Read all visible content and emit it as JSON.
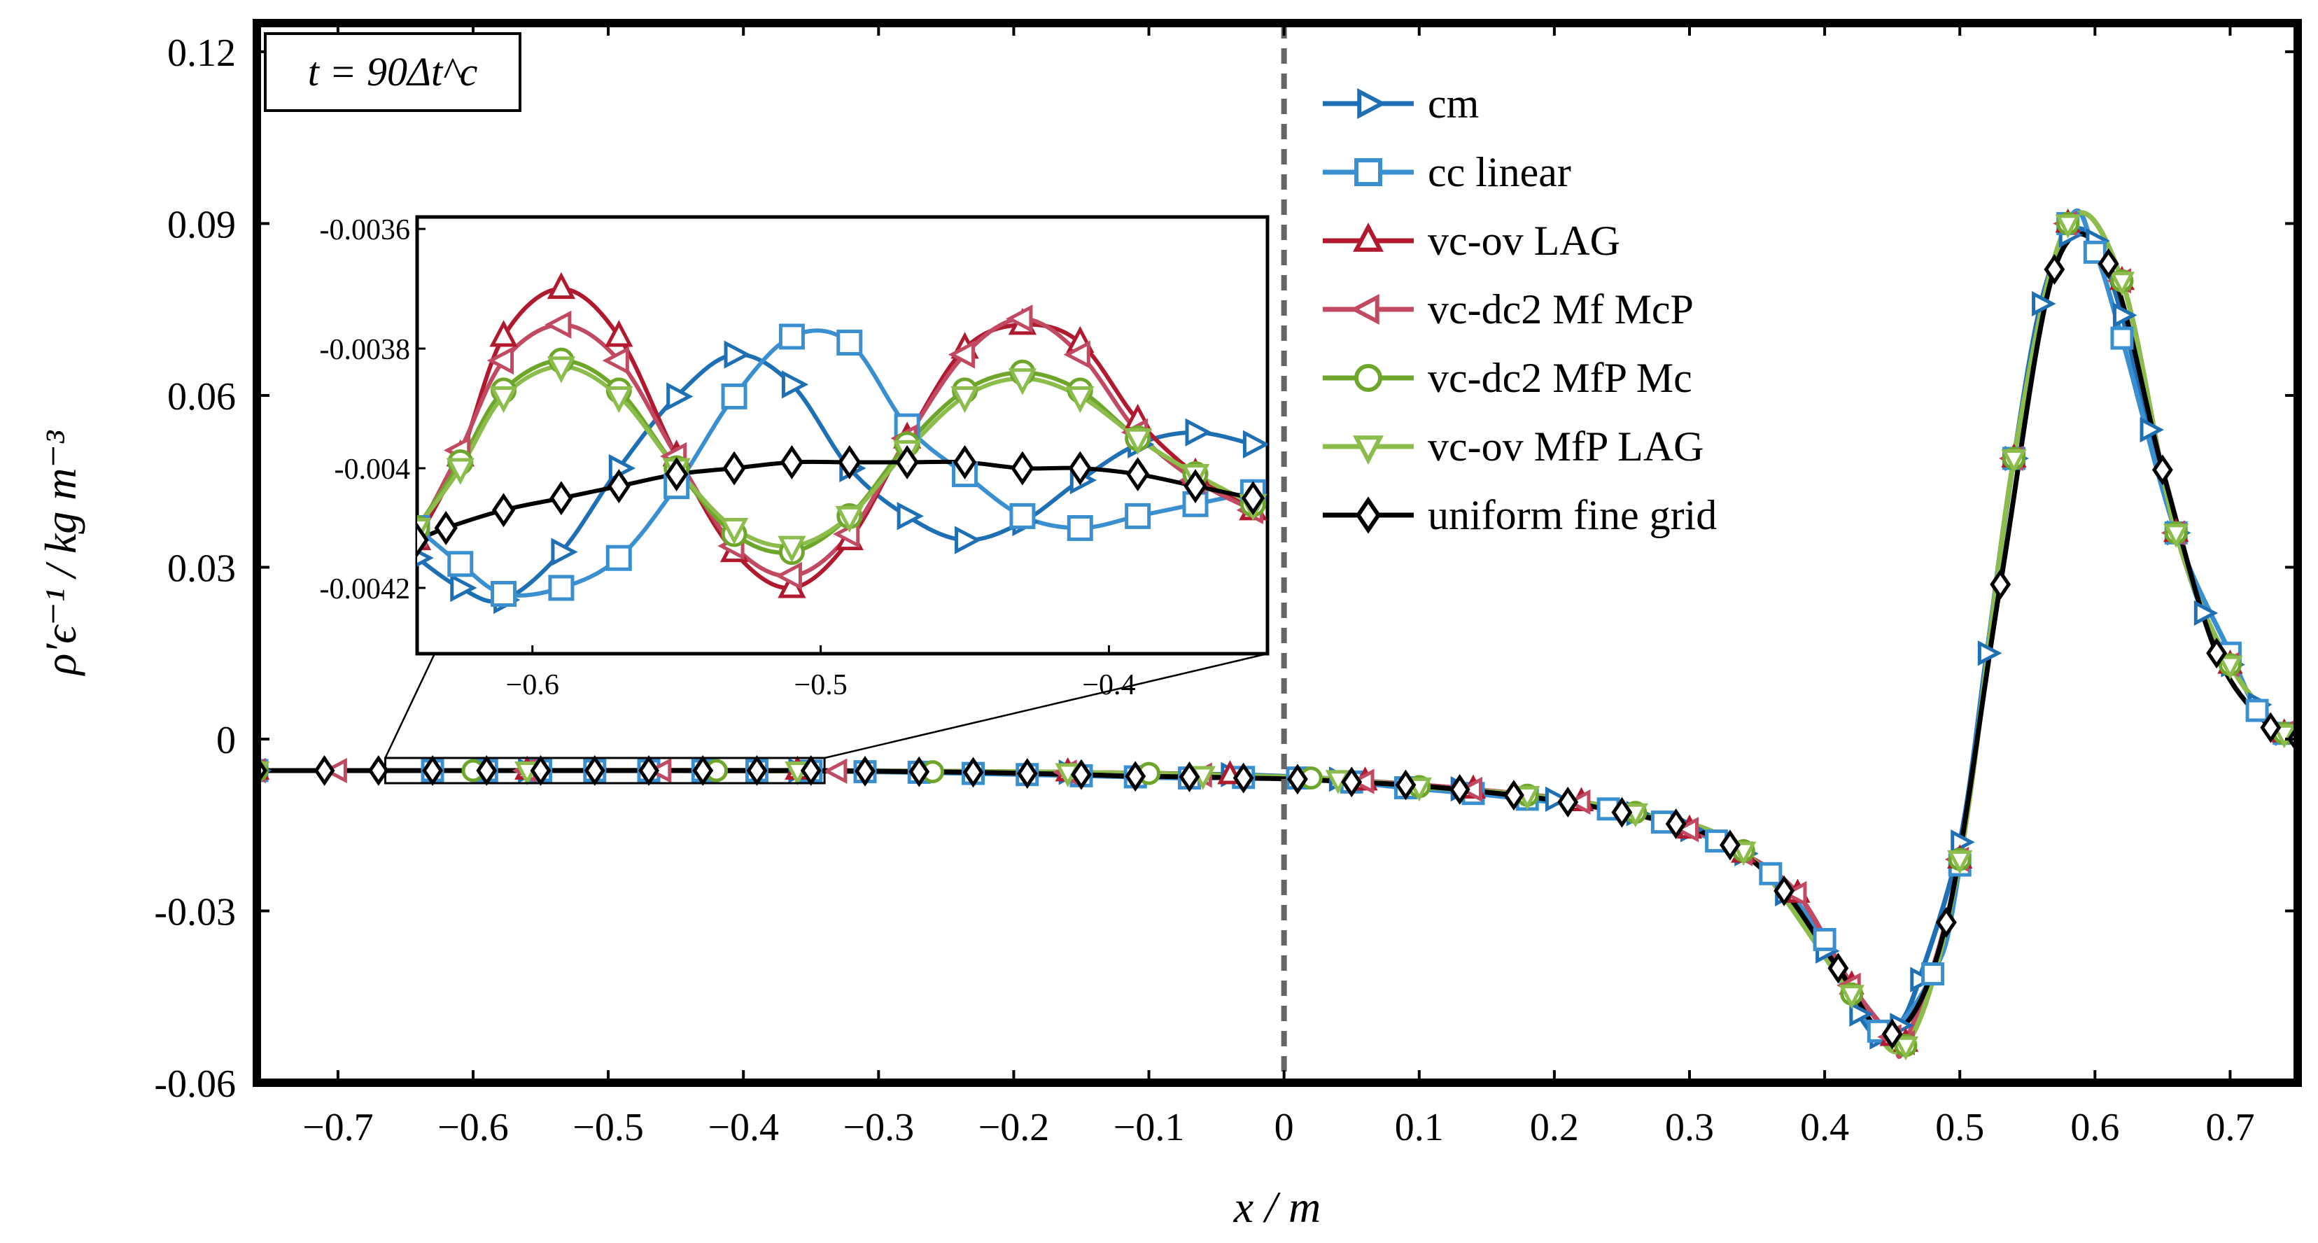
{
  "chart_data": {
    "type": "line",
    "annotation": "t = 90Δt^c",
    "xlabel": "x / m",
    "ylabel": "ρ′ϵ⁻¹ / kg m⁻³",
    "xlim": [
      -0.76,
      0.75
    ],
    "ylim": [
      -0.06,
      0.125
    ],
    "x_ticks": [
      -0.7,
      -0.6,
      -0.5,
      -0.4,
      -0.3,
      -0.2,
      -0.1,
      0,
      0.1,
      0.2,
      0.3,
      0.4,
      0.5,
      0.6,
      0.7
    ],
    "x_tick_labels": [
      "−0.7",
      "−0.6",
      "−0.5",
      "−0.4",
      "−0.3",
      "−0.2",
      "−0.1",
      "0",
      "0.1",
      "0.2",
      "0.3",
      "0.4",
      "0.5",
      "0.6",
      "0.7"
    ],
    "y_ticks": [
      -0.06,
      -0.03,
      0,
      0.03,
      0.06,
      0.09,
      0.12
    ],
    "y_tick_labels": [
      "-0.06",
      "-0.03",
      "0",
      "0.03",
      "0.06",
      "0.09",
      "0.12"
    ],
    "vertical_line_x": 0,
    "legend_position": "top-right",
    "series": [
      {
        "name": "cm",
        "color": "#1f6fb5",
        "marker": "triangle-right",
        "x": [
          -0.76,
          -0.56,
          -0.36,
          -0.16,
          -0.04,
          0.04,
          0.13,
          0.2,
          0.26,
          0.3,
          0.34,
          0.37,
          0.4,
          0.425,
          0.44,
          0.455,
          0.47,
          0.5,
          0.52,
          0.54,
          0.56,
          0.58,
          0.6,
          0.62,
          0.64,
          0.66,
          0.68,
          0.7,
          0.72,
          0.74
        ],
        "y": [
          -0.0055,
          -0.0055,
          -0.0055,
          -0.0058,
          -0.0062,
          -0.007,
          -0.0087,
          -0.0105,
          -0.013,
          -0.0158,
          -0.02,
          -0.027,
          -0.037,
          -0.048,
          -0.052,
          -0.05,
          -0.042,
          -0.018,
          0.015,
          0.049,
          0.076,
          0.088,
          0.087,
          0.074,
          0.054,
          0.036,
          0.022,
          0.013,
          0.006,
          0.001
        ]
      },
      {
        "name": "cc linear",
        "color": "#3a8fd0",
        "marker": "square",
        "x": [
          -0.76,
          -0.63,
          -0.59,
          -0.55,
          -0.51,
          -0.47,
          -0.43,
          -0.39,
          -0.35,
          -0.31,
          -0.27,
          -0.23,
          -0.19,
          -0.15,
          -0.11,
          -0.07,
          -0.03,
          0.01,
          0.05,
          0.09,
          0.14,
          0.18,
          0.24,
          0.28,
          0.32,
          0.36,
          0.4,
          0.44,
          0.48,
          0.5,
          0.54,
          0.58,
          0.6,
          0.62,
          0.66,
          0.7,
          0.72,
          0.74
        ],
        "y": [
          -0.0055,
          -0.0055,
          -0.0055,
          -0.0055,
          -0.0055,
          -0.0055,
          -0.0055,
          -0.0055,
          -0.0056,
          -0.0057,
          -0.0058,
          -0.006,
          -0.0062,
          -0.0064,
          -0.0066,
          -0.0068,
          -0.0067,
          -0.0068,
          -0.0075,
          -0.0085,
          -0.0095,
          -0.0105,
          -0.0122,
          -0.0145,
          -0.0178,
          -0.0235,
          -0.035,
          -0.051,
          -0.041,
          -0.022,
          0.049,
          0.09,
          0.085,
          0.07,
          0.036,
          0.015,
          0.005,
          0.001
        ]
      },
      {
        "name": "vc-ov LAG",
        "color": "#b0192e",
        "marker": "triangle-up",
        "x": [
          -0.76,
          -0.56,
          -0.36,
          -0.16,
          -0.04,
          0.06,
          0.14,
          0.22,
          0.3,
          0.34,
          0.38,
          0.42,
          0.45,
          0.46,
          0.5,
          0.54,
          0.58,
          0.62,
          0.66,
          0.7,
          0.74
        ],
        "y": [
          -0.0055,
          -0.0055,
          -0.0055,
          -0.0058,
          -0.0063,
          -0.0074,
          -0.0088,
          -0.011,
          -0.0158,
          -0.02,
          -0.027,
          -0.043,
          -0.052,
          -0.053,
          -0.021,
          0.049,
          0.09,
          0.08,
          0.036,
          0.013,
          0.001
        ]
      },
      {
        "name": "vc-dc2 Mf McP",
        "color": "#c14a62",
        "marker": "triangle-left",
        "x": [
          -0.76,
          -0.7,
          -0.56,
          -0.46,
          -0.33,
          -0.16,
          -0.06,
          0.06,
          0.14,
          0.22,
          0.3,
          0.34,
          0.38,
          0.42,
          0.45,
          0.46,
          0.5,
          0.54,
          0.58,
          0.62,
          0.66,
          0.7,
          0.74
        ],
        "y": [
          -0.0055,
          -0.0055,
          -0.0055,
          -0.0055,
          -0.0056,
          -0.0058,
          -0.0063,
          -0.0074,
          -0.0088,
          -0.011,
          -0.0158,
          -0.02,
          -0.027,
          -0.043,
          -0.052,
          -0.053,
          -0.021,
          0.049,
          0.09,
          0.08,
          0.036,
          0.013,
          0.001
        ]
      },
      {
        "name": "vc-dc2 MfP Mc",
        "color": "#6ea62b",
        "marker": "circle",
        "x": [
          -0.76,
          -0.6,
          -0.42,
          -0.26,
          -0.1,
          0.02,
          0.1,
          0.18,
          0.26,
          0.34,
          0.42,
          0.46,
          0.5,
          0.54,
          0.58,
          0.62,
          0.66,
          0.7,
          0.74
        ],
        "y": [
          -0.0055,
          -0.0055,
          -0.0055,
          -0.0057,
          -0.006,
          -0.0068,
          -0.0083,
          -0.0098,
          -0.0128,
          -0.0195,
          -0.0445,
          -0.0535,
          -0.021,
          0.049,
          0.09,
          0.08,
          0.036,
          0.013,
          0.001
        ]
      },
      {
        "name": "vc-ov MfP LAG",
        "color": "#8cbc4c",
        "marker": "triangle-down",
        "x": [
          -0.76,
          -0.56,
          -0.36,
          -0.16,
          -0.06,
          0.04,
          0.1,
          0.18,
          0.26,
          0.34,
          0.42,
          0.46,
          0.5,
          0.54,
          0.58,
          0.62,
          0.66,
          0.7,
          0.74
        ],
        "y": [
          -0.0055,
          -0.0055,
          -0.0055,
          -0.0058,
          -0.0063,
          -0.007,
          -0.0083,
          -0.0098,
          -0.0128,
          -0.0195,
          -0.0445,
          -0.0535,
          -0.021,
          0.049,
          0.09,
          0.08,
          0.036,
          0.013,
          0.001
        ]
      },
      {
        "name": "uniform fine grid",
        "color": "#000000",
        "marker": "diamond",
        "x": [
          -0.76,
          -0.71,
          -0.67,
          -0.63,
          -0.59,
          -0.55,
          -0.51,
          -0.47,
          -0.43,
          -0.39,
          -0.35,
          -0.31,
          -0.27,
          -0.23,
          -0.19,
          -0.15,
          -0.11,
          -0.07,
          -0.03,
          0.01,
          0.05,
          0.09,
          0.13,
          0.17,
          0.21,
          0.25,
          0.29,
          0.33,
          0.37,
          0.41,
          0.45,
          0.49,
          0.53,
          0.57,
          0.61,
          0.65,
          0.69,
          0.73,
          0.75
        ],
        "y": [
          -0.0055,
          -0.0055,
          -0.0055,
          -0.0055,
          -0.0055,
          -0.0055,
          -0.0055,
          -0.0055,
          -0.0055,
          -0.0055,
          -0.0055,
          -0.0056,
          -0.0057,
          -0.0058,
          -0.006,
          -0.0062,
          -0.0065,
          -0.0066,
          -0.0068,
          -0.007,
          -0.0075,
          -0.008,
          -0.0088,
          -0.0098,
          -0.011,
          -0.0128,
          -0.0148,
          -0.0185,
          -0.0265,
          -0.04,
          -0.0515,
          -0.032,
          0.027,
          0.082,
          0.083,
          0.047,
          0.015,
          0.002,
          0.0
        ]
      }
    ],
    "inset": {
      "xlim": [
        -0.64,
        -0.345
      ],
      "ylim": [
        -0.00431,
        -0.00358
      ],
      "zoom_region": {
        "xlim": [
          -0.665,
          -0.34
        ],
        "ylim": [
          -0.0077,
          -0.0033
        ]
      },
      "x_ticks": [
        -0.6,
        -0.5,
        -0.4
      ],
      "x_tick_labels": [
        "−0.6",
        "−0.5",
        "−0.4"
      ],
      "y_ticks": [
        -0.0036,
        -0.0038,
        -0.004,
        -0.0042
      ],
      "y_tick_labels": [
        "-0.0036",
        "-0.0038",
        "-0.004",
        "-0.0042"
      ],
      "series": [
        {
          "name": "cm",
          "x": [
            -0.64,
            -0.625,
            -0.61,
            -0.59,
            -0.57,
            -0.55,
            -0.53,
            -0.51,
            -0.49,
            -0.47,
            -0.45,
            -0.43,
            -0.41,
            -0.39,
            -0.37,
            -0.35
          ],
          "y": [
            -0.00415,
            -0.0042,
            -0.00422,
            -0.00414,
            -0.004,
            -0.00388,
            -0.00381,
            -0.00386,
            -0.004,
            -0.00408,
            -0.00412,
            -0.00409,
            -0.00402,
            -0.00396,
            -0.00394,
            -0.00396
          ]
        },
        {
          "name": "cc linear",
          "x": [
            -0.64,
            -0.625,
            -0.61,
            -0.59,
            -0.57,
            -0.55,
            -0.53,
            -0.51,
            -0.49,
            -0.47,
            -0.45,
            -0.43,
            -0.41,
            -0.39,
            -0.37,
            -0.35
          ],
          "y": [
            -0.0041,
            -0.00416,
            -0.00421,
            -0.0042,
            -0.00415,
            -0.00403,
            -0.00388,
            -0.00378,
            -0.00379,
            -0.00393,
            -0.00401,
            -0.00408,
            -0.0041,
            -0.00408,
            -0.00406,
            -0.00404
          ]
        },
        {
          "name": "vc-ov LAG",
          "x": [
            -0.64,
            -0.625,
            -0.61,
            -0.59,
            -0.57,
            -0.55,
            -0.53,
            -0.51,
            -0.49,
            -0.47,
            -0.45,
            -0.43,
            -0.41,
            -0.39,
            -0.37,
            -0.35
          ],
          "y": [
            -0.00412,
            -0.00398,
            -0.00378,
            -0.0037,
            -0.00378,
            -0.00398,
            -0.00414,
            -0.0042,
            -0.00412,
            -0.00395,
            -0.0038,
            -0.00376,
            -0.00379,
            -0.00392,
            -0.00401,
            -0.00407
          ]
        },
        {
          "name": "vc-dc2 Mf McP",
          "x": [
            -0.64,
            -0.625,
            -0.61,
            -0.59,
            -0.57,
            -0.55,
            -0.53,
            -0.51,
            -0.49,
            -0.47,
            -0.45,
            -0.43,
            -0.41,
            -0.39,
            -0.37,
            -0.35
          ],
          "y": [
            -0.00411,
            -0.00397,
            -0.00382,
            -0.00376,
            -0.00382,
            -0.00398,
            -0.00413,
            -0.00418,
            -0.00411,
            -0.00395,
            -0.00381,
            -0.00375,
            -0.00381,
            -0.00394,
            -0.00402,
            -0.00407
          ]
        },
        {
          "name": "vc-dc2 MfP Mc",
          "x": [
            -0.64,
            -0.625,
            -0.61,
            -0.59,
            -0.57,
            -0.55,
            -0.53,
            -0.51,
            -0.49,
            -0.47,
            -0.45,
            -0.43,
            -0.41,
            -0.39,
            -0.37,
            -0.35
          ],
          "y": [
            -0.0041,
            -0.00399,
            -0.00387,
            -0.00382,
            -0.00387,
            -0.004,
            -0.00411,
            -0.00414,
            -0.00408,
            -0.00396,
            -0.00387,
            -0.00384,
            -0.00387,
            -0.00395,
            -0.00401,
            -0.00406
          ]
        },
        {
          "name": "vc-ov MfP LAG",
          "x": [
            -0.64,
            -0.625,
            -0.61,
            -0.59,
            -0.57,
            -0.55,
            -0.53,
            -0.51,
            -0.49,
            -0.47,
            -0.45,
            -0.43,
            -0.41,
            -0.39,
            -0.37,
            -0.35
          ],
          "y": [
            -0.0041,
            -0.004,
            -0.00388,
            -0.00383,
            -0.00388,
            -0.004,
            -0.0041,
            -0.00413,
            -0.00408,
            -0.00397,
            -0.00388,
            -0.00385,
            -0.00388,
            -0.00395,
            -0.00401,
            -0.00406
          ]
        },
        {
          "name": "uniform fine grid",
          "x": [
            -0.64,
            -0.63,
            -0.61,
            -0.59,
            -0.57,
            -0.55,
            -0.53,
            -0.51,
            -0.49,
            -0.47,
            -0.45,
            -0.43,
            -0.41,
            -0.39,
            -0.37,
            -0.35
          ],
          "y": [
            -0.00412,
            -0.0041,
            -0.00407,
            -0.00405,
            -0.00403,
            -0.00401,
            -0.004,
            -0.00399,
            -0.00399,
            -0.00399,
            -0.00399,
            -0.004,
            -0.004,
            -0.00401,
            -0.00403,
            -0.00405
          ]
        }
      ]
    }
  }
}
